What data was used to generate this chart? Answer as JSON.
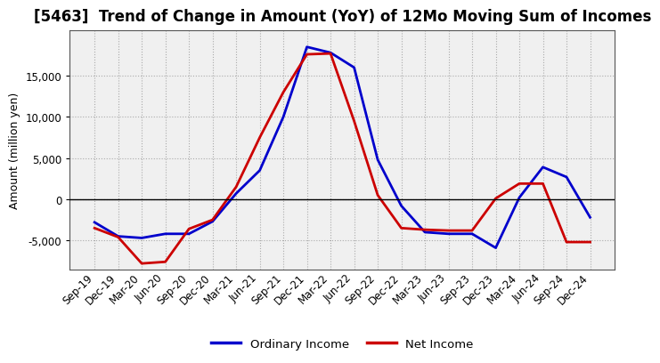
{
  "title": "[5463]  Trend of Change in Amount (YoY) of 12Mo Moving Sum of Incomes",
  "ylabel": "Amount (million yen)",
  "x_labels": [
    "Sep-19",
    "Dec-19",
    "Mar-20",
    "Jun-20",
    "Sep-20",
    "Dec-20",
    "Mar-21",
    "Jun-21",
    "Sep-21",
    "Dec-21",
    "Mar-22",
    "Jun-22",
    "Sep-22",
    "Dec-22",
    "Mar-23",
    "Jun-23",
    "Sep-23",
    "Dec-23",
    "Mar-24",
    "Jun-24",
    "Sep-24",
    "Dec-24"
  ],
  "ordinary_income": [
    -2800,
    -4500,
    -4700,
    -4200,
    -4200,
    -2700,
    700,
    3500,
    10000,
    18500,
    17800,
    16000,
    4800,
    -800,
    -4000,
    -4200,
    -4200,
    -5900,
    200,
    3900,
    2700,
    -2200
  ],
  "net_income": [
    -3500,
    -4600,
    -7800,
    -7600,
    -3600,
    -2500,
    1500,
    7500,
    13000,
    17600,
    17700,
    9500,
    500,
    -3500,
    -3700,
    -3800,
    -3800,
    100,
    1900,
    1900,
    -5200,
    -5200
  ],
  "ordinary_color": "#0000cc",
  "net_color": "#cc0000",
  "bg_color": "#ffffff",
  "plot_bg_color": "#f0f0f0",
  "grid_color": "#aaaaaa",
  "ylim": [
    -8500,
    20500
  ],
  "yticks": [
    -5000,
    0,
    5000,
    10000,
    15000
  ],
  "line_width": 2.0,
  "legend_labels": [
    "Ordinary Income",
    "Net Income"
  ],
  "title_fontsize": 12,
  "ylabel_fontsize": 9,
  "tick_fontsize": 8.5
}
